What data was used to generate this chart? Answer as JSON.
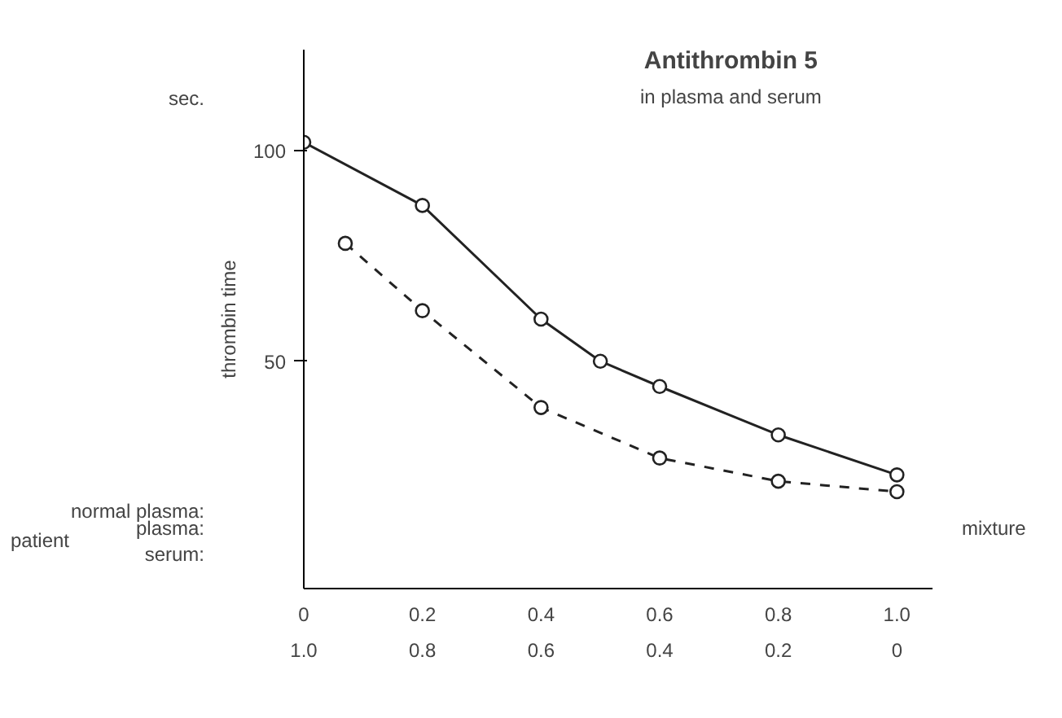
{
  "chart_data": {
    "type": "line",
    "title": "Antithrombin 5",
    "subtitle": "in plasma and serum",
    "ylabel": "thrombin time",
    "annotations": [
      "sec.",
      "normal plasma:",
      "patient",
      "plasma:",
      "serum:",
      "mixture"
    ],
    "xlim": [
      0,
      1.06
    ],
    "ylim": [
      -4,
      124
    ],
    "xticks": [
      0,
      {
        "value": 0.2,
        "label": "0.2"
      },
      0.4,
      0.6,
      0.8,
      {
        "value": 1.0,
        "label": "1.0"
      }
    ],
    "x2lim": [
      1.0,
      -0.06
    ],
    "x2ticks": [
      {
        "value": 1.0,
        "label": "1.0"
      },
      0.8,
      0.6,
      0.4,
      0.2,
      0
    ],
    "yticks": [
      50,
      100
    ],
    "grid": false,
    "marker": "circle",
    "series": [
      {
        "color": "#222222",
        "line_style": "solid",
        "x": [
          0,
          0.2,
          0.4,
          0.5,
          0.6,
          0.8,
          1.0
        ],
        "values": [
          102,
          87,
          60,
          50,
          44,
          32.5,
          23
        ]
      },
      {
        "color": "#222222",
        "line_style": "dashed",
        "x": [
          0.07,
          0.2,
          0.4,
          0.6,
          0.8,
          1.0
        ],
        "values": [
          78,
          62,
          39,
          27,
          21.5,
          19
        ]
      }
    ]
  }
}
